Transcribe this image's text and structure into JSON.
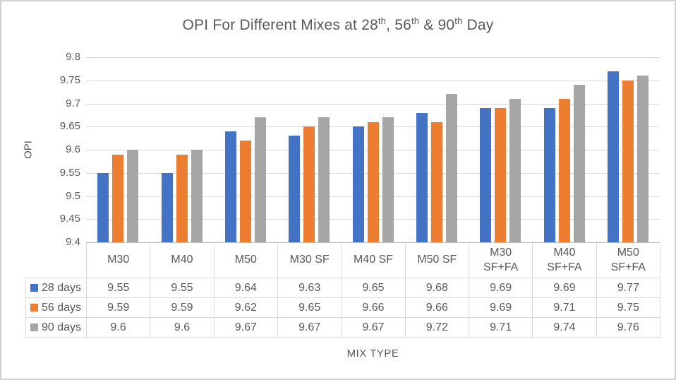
{
  "chart": {
    "title_segments": [
      {
        "text": "OPI For Different Mixes at 28"
      },
      {
        "text": "th",
        "sup": true
      },
      {
        "text": ", 56"
      },
      {
        "text": "th",
        "sup": true
      },
      {
        "text": " & 90"
      },
      {
        "text": "th",
        "sup": true
      },
      {
        "text": " Day"
      }
    ],
    "y_axis_label": "OPI",
    "x_axis_label": "MIX TYPE"
  },
  "chart_data": {
    "type": "bar",
    "title": "OPI For Different Mixes at 28th, 56th & 90th Day",
    "categories": [
      "M30",
      "M40",
      "M50",
      "M30 SF",
      "M40 SF",
      "M50 SF",
      "M30 SF+FA",
      "M40 SF+FA",
      "M50 SF+FA"
    ],
    "series": [
      {
        "name": "28 days",
        "color": "#4472C4",
        "values": [
          9.55,
          9.55,
          9.64,
          9.63,
          9.65,
          9.68,
          9.69,
          9.69,
          9.77
        ]
      },
      {
        "name": "56 days",
        "color": "#ED7D31",
        "values": [
          9.59,
          9.59,
          9.62,
          9.65,
          9.66,
          9.66,
          9.69,
          9.71,
          9.75
        ]
      },
      {
        "name": "90 days",
        "color": "#A5A5A5",
        "values": [
          9.6,
          9.6,
          9.67,
          9.67,
          9.67,
          9.72,
          9.71,
          9.74,
          9.76
        ]
      }
    ],
    "xlabel": "MIX TYPE",
    "ylabel": "OPI",
    "ylim": [
      9.4,
      9.8
    ],
    "y_tick_labels": [
      "9.8",
      "9.75",
      "9.7",
      "9.65",
      "9.6",
      "9.55",
      "9.5",
      "9.45",
      "9.4"
    ],
    "grid": true,
    "legend_position": "table-row-headers"
  },
  "table": {
    "column_headers": [
      "M30",
      "M40",
      "M50",
      "M30 SF",
      "M40 SF",
      "M50 SF",
      "M30\nSF+FA",
      "M40\nSF+FA",
      "M50\nSF+FA"
    ],
    "row_labels": [
      "28 days",
      "56 days",
      "90 days"
    ]
  },
  "colors": {
    "series_blue": "#4472C4",
    "series_orange": "#ED7D31",
    "series_gray": "#A5A5A5",
    "text": "#595959",
    "gridline": "#D9D9D9",
    "axis_line": "#BFBFBF",
    "chart_border": "#D2D2D2"
  }
}
